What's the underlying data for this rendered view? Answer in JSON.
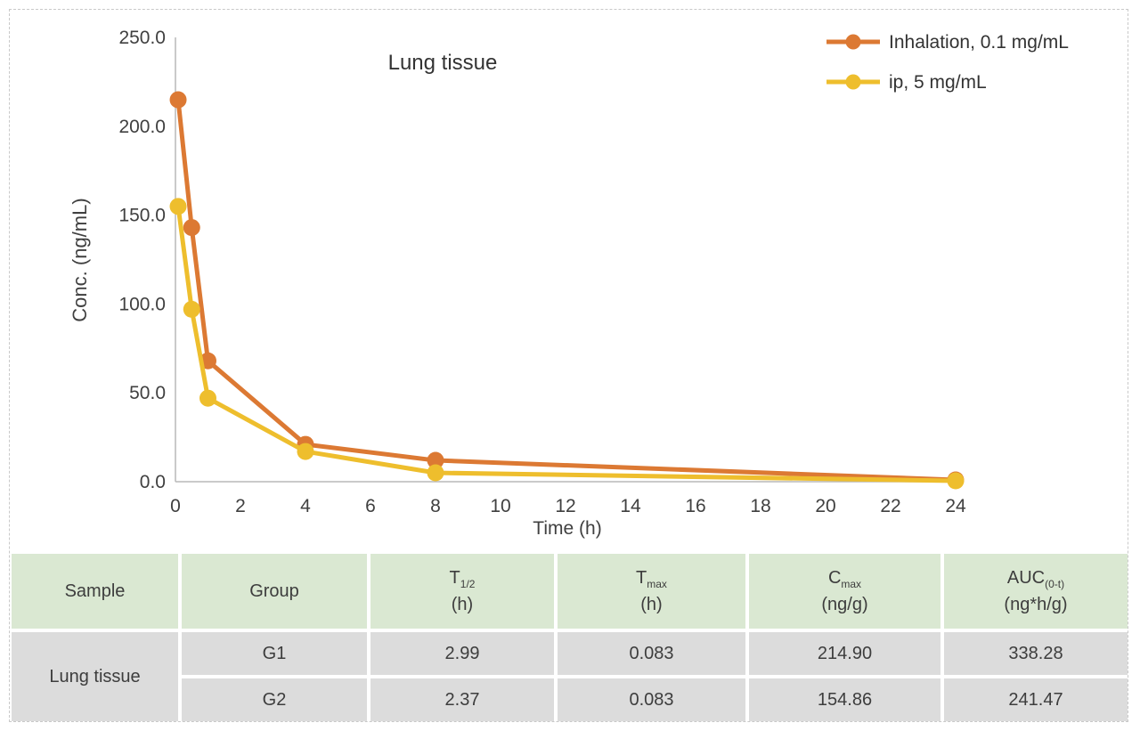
{
  "chart_data": {
    "type": "line",
    "title": "Lung tissue",
    "xlabel": "Time (h)",
    "ylabel": "Conc. (ng/mL)",
    "xlim": [
      0,
      24
    ],
    "ylim": [
      0,
      250
    ],
    "x_ticks": [
      0,
      2,
      4,
      6,
      8,
      10,
      12,
      14,
      16,
      18,
      20,
      22,
      24
    ],
    "y_ticks": [
      0,
      50,
      100,
      150,
      200,
      250
    ],
    "y_tick_decimals": 1,
    "grid": false,
    "legend_position": "top-right",
    "axis_color": "#b9b9b9",
    "text_color": "#404040",
    "series": [
      {
        "name": "Inhalation, 0.1 mg/mL",
        "color": "#dc7933",
        "x": [
          0.083,
          0.5,
          1,
          4,
          8,
          24
        ],
        "values": [
          214.9,
          143,
          68,
          21,
          12,
          1
        ]
      },
      {
        "name": "ip, 5 mg/mL",
        "color": "#eebe2d",
        "x": [
          0.083,
          0.5,
          1,
          4,
          8,
          24
        ],
        "values": [
          154.9,
          97,
          47,
          17,
          5,
          0.5
        ]
      }
    ]
  },
  "table": {
    "colors": {
      "header_bg": "#dae8d2",
      "body_bg": "#dcdcdc"
    },
    "headers": {
      "sample": {
        "label": "Sample"
      },
      "group": {
        "label": "Group"
      },
      "t_half": {
        "main": "T",
        "sub": "1/2",
        "unit": "(h)"
      },
      "t_max": {
        "main": "T",
        "sub": "max",
        "unit": "(h)"
      },
      "c_max": {
        "main": "C",
        "sub": "max",
        "unit": "(ng/g)"
      },
      "auc": {
        "main": "AUC",
        "sub": "(0-t)",
        "unit": "(ng*h/g)"
      }
    },
    "sample_label": "Lung tissue",
    "rows": [
      {
        "group": "G1",
        "t_half": "2.99",
        "t_max": "0.083",
        "c_max": "214.90",
        "auc": "338.28"
      },
      {
        "group": "G2",
        "t_half": "2.37",
        "t_max": "0.083",
        "c_max": "154.86",
        "auc": "241.47"
      }
    ]
  }
}
